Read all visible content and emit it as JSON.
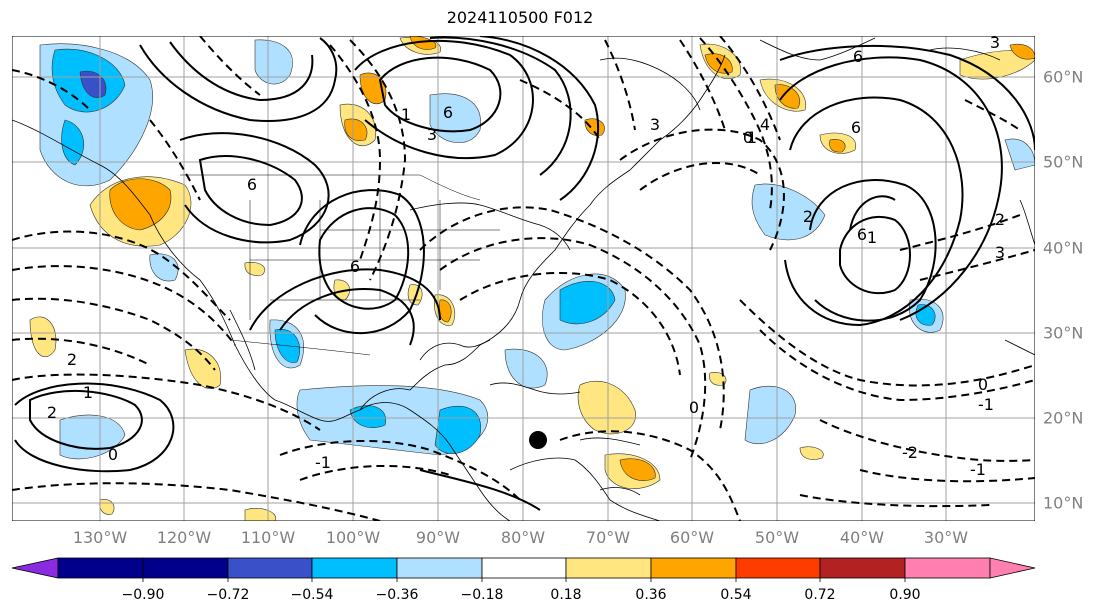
{
  "title": "2024110500 F012",
  "longitude_labels": [
    "130°W",
    "120°W",
    "110°W",
    "100°W",
    "90°W",
    "80°W",
    "70°W",
    "60°W",
    "50°W",
    "40°W",
    "30°W"
  ],
  "latitude_labels": [
    "60°N",
    "50°N",
    "40°N",
    "30°N",
    "20°N",
    "10°N"
  ],
  "colorbar": {
    "tick_labels": [
      "−0.90",
      "−0.72",
      "−0.54",
      "−0.36",
      "−0.18",
      "0.18",
      "0.36",
      "0.54",
      "0.72",
      "0.90"
    ],
    "colors": [
      "#8a2be2",
      "#00008b",
      "#3a50c8",
      "#00bfff",
      "#b0e0ff",
      "#ffffff",
      "#ffe680",
      "#ffa500",
      "#ff3c00",
      "#b22222",
      "#ff80b0"
    ]
  },
  "contour_labels": [
    "6",
    "3",
    "6",
    "1",
    "6",
    "3",
    "1",
    "2",
    "1",
    "4",
    "6",
    "6",
    "6",
    "3",
    "0",
    "2",
    "1",
    "3",
    "2",
    "0",
    "0",
    "-1",
    "-1",
    "-2",
    "-1",
    "0",
    "2"
  ],
  "marker": "storm-center-marker"
}
